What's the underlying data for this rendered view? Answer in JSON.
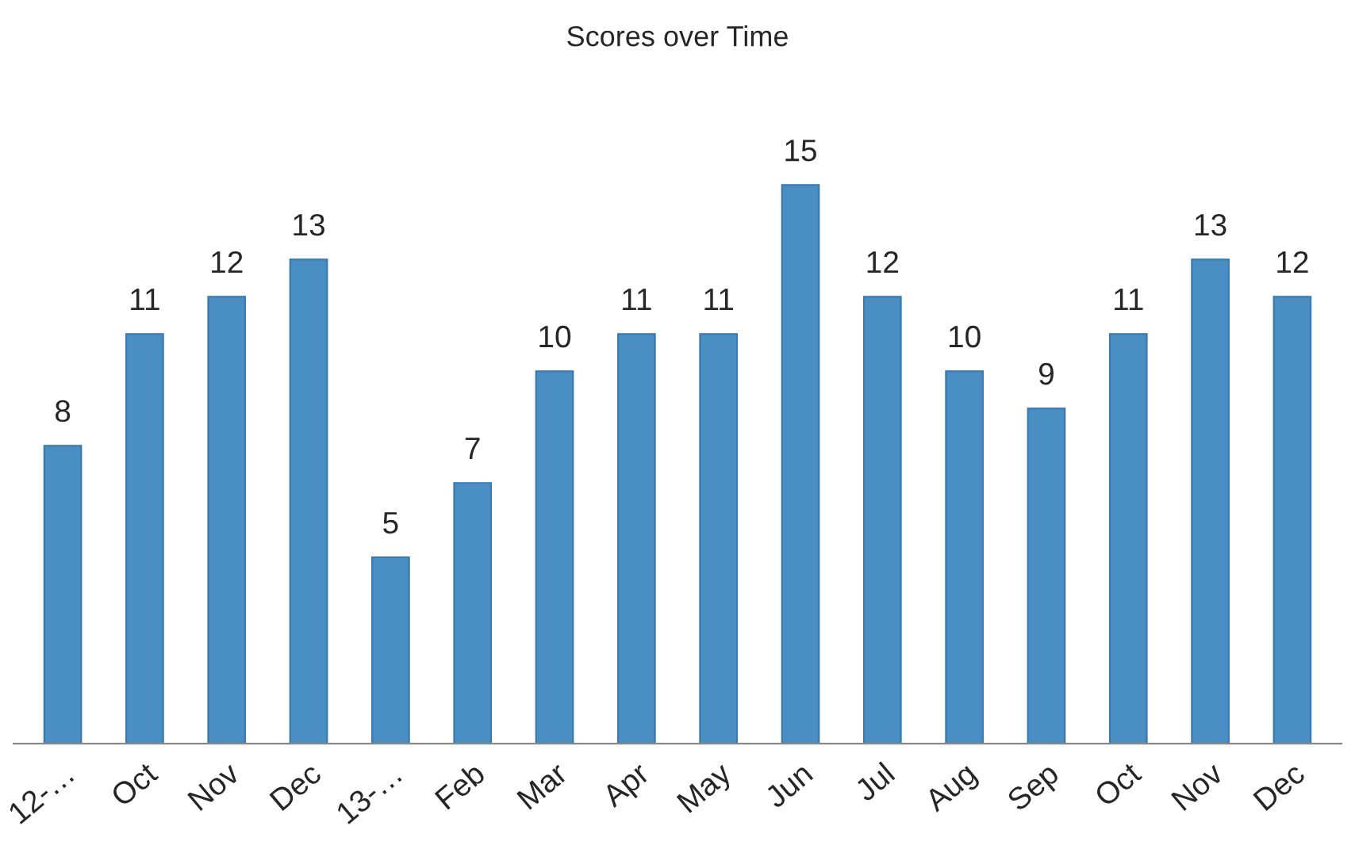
{
  "chart_data": {
    "type": "bar",
    "title": "Scores over Time",
    "categories": [
      "12-…",
      "Oct",
      "Nov",
      "Dec",
      "13-…",
      "Feb",
      "Mar",
      "Apr",
      "May",
      "Jun",
      "Jul",
      "Aug",
      "Sep",
      "Oct",
      "Nov",
      "Dec"
    ],
    "values": [
      8,
      11,
      12,
      13,
      5,
      7,
      10,
      11,
      11,
      15,
      12,
      10,
      9,
      11,
      13,
      12
    ],
    "color": "#4a8fc4",
    "data_labels": true
  }
}
